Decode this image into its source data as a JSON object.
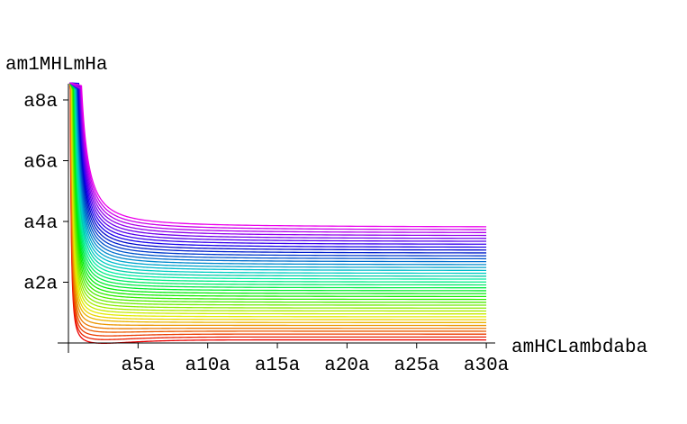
{
  "chart_data": {
    "type": "line",
    "title": "",
    "xlabel": "amHCLambdaba",
    "ylabel": "am1MHLmHa",
    "xlim": [
      -0.5,
      30
    ],
    "ylim": [
      -0.1,
      8.8
    ],
    "x_ticks": [
      {
        "value": 5,
        "label": "a5a"
      },
      {
        "value": 10,
        "label": "a10a"
      },
      {
        "value": 15,
        "label": "a15a"
      },
      {
        "value": 20,
        "label": "a20a"
      },
      {
        "value": 25,
        "label": "a25a"
      },
      {
        "value": 30,
        "label": "a30a"
      }
    ],
    "y_ticks": [
      {
        "value": 2,
        "label": "a2a"
      },
      {
        "value": 4,
        "label": "a4a"
      },
      {
        "value": 6,
        "label": "a6a"
      },
      {
        "value": 8,
        "label": "a8a"
      }
    ],
    "grid": false,
    "legend": "none",
    "series_count": 40,
    "color_scheme": "red-to-magenta hue progression",
    "asymptote_min": 0.1,
    "asymptote_max": 3.8,
    "x_start": 0.1,
    "x_end": 30
  }
}
